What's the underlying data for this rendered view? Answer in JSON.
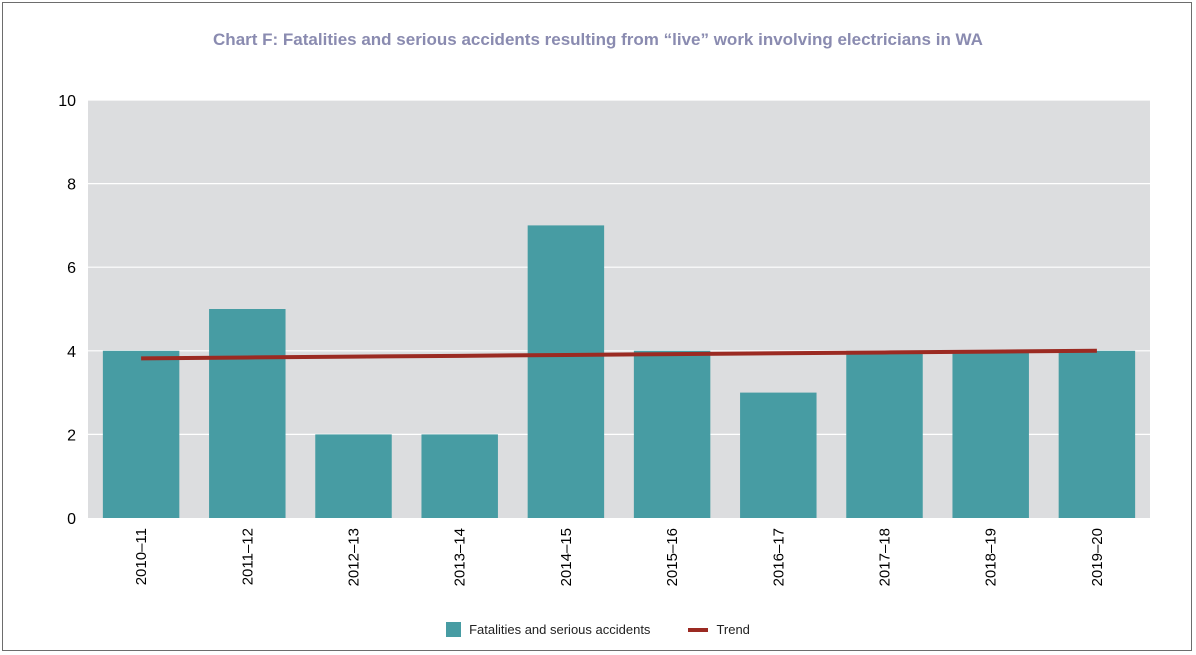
{
  "chart_data": {
    "type": "bar",
    "title": "Chart F: Fatalities and serious accidents resulting from “live” work involving electricians in WA",
    "categories": [
      "2010–11",
      "2011–12",
      "2012–13",
      "2013–14",
      "2014–15",
      "2015–16",
      "2016–17",
      "2017–18",
      "2018–19",
      "2019–20"
    ],
    "series": [
      {
        "name": "Fatalities and serious accidents",
        "type": "bar",
        "values": [
          4,
          5,
          2,
          2,
          7,
          4,
          3,
          4,
          4,
          4
        ]
      },
      {
        "name": "Trend",
        "type": "line",
        "values": [
          3.82,
          3.84,
          3.86,
          3.88,
          3.9,
          3.92,
          3.94,
          3.96,
          3.98,
          4.0
        ]
      }
    ],
    "ylim": [
      0,
      10
    ],
    "yticks": [
      0,
      2,
      4,
      6,
      8,
      10
    ],
    "grid": true,
    "legend": "bottom-center",
    "colors": {
      "bar": "#479ca3",
      "trend": "#9b2a22",
      "plot_background": "#dcdddf",
      "title": "#8a8bb0"
    }
  }
}
